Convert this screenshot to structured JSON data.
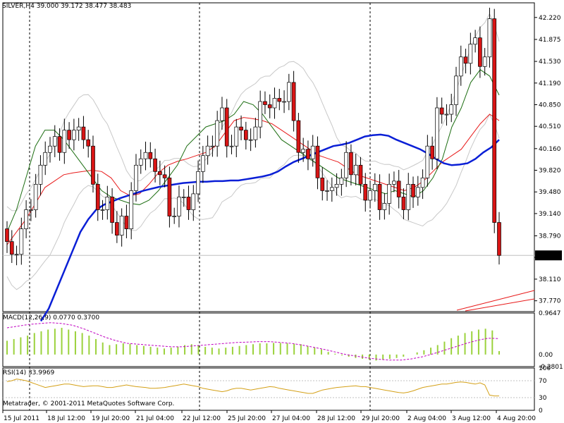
{
  "header": {
    "symbol": "SILVER,H4",
    "ohlc": "39.000 39.172 38.477 38.483"
  },
  "chart_data": [
    {
      "type": "candlestick",
      "title": "SILVER,H4",
      "ylim": [
        37.6,
        42.45
      ],
      "y_ticks": [
        "42.220",
        "41.875",
        "41.530",
        "41.190",
        "40.850",
        "40.510",
        "40.160",
        "39.820",
        "39.480",
        "39.140",
        "38.790",
        "38.450",
        "38.110",
        "37.770"
      ],
      "y_tick_values": [
        42.22,
        41.875,
        41.53,
        41.19,
        40.85,
        40.51,
        40.16,
        39.82,
        39.48,
        39.14,
        38.79,
        38.45,
        38.11,
        37.77
      ],
      "price_tag": "38.483",
      "price_value": 38.483,
      "closes": [
        38.7,
        38.5,
        38.5,
        38.9,
        39.2,
        39.2,
        39.6,
        39.9,
        40.1,
        40.2,
        40.35,
        40.1,
        40.45,
        40.3,
        40.45,
        40.5,
        40.3,
        40.2,
        39.6,
        39.2,
        39.2,
        39.4,
        39.0,
        38.8,
        39.1,
        38.9,
        39.5,
        39.9,
        40.0,
        40.1,
        40.0,
        39.8,
        39.75,
        39.7,
        39.1,
        39.1,
        39.4,
        39.4,
        39.2,
        39.45,
        39.8,
        40.05,
        40.2,
        40.2,
        40.6,
        40.8,
        40.2,
        40.2,
        40.5,
        40.45,
        40.3,
        40.3,
        40.5,
        40.9,
        40.85,
        40.8,
        40.95,
        40.9,
        40.9,
        41.2,
        40.6,
        40.1,
        40.15,
        40.0,
        40.2,
        39.7,
        39.5,
        39.5,
        39.55,
        39.6,
        39.7,
        40.1,
        39.75,
        39.9,
        39.6,
        39.35,
        39.5,
        39.6,
        39.2,
        39.3,
        39.6,
        39.65,
        39.4,
        39.2,
        39.6,
        39.4,
        39.55,
        39.7,
        40.2,
        40.0,
        40.8,
        40.7,
        40.7,
        40.85,
        41.3,
        41.6,
        41.5,
        41.8,
        41.9,
        41.45,
        41.6,
        42.2,
        39.0,
        38.483
      ],
      "ma_blue": [
        37.45,
        37.65,
        37.95,
        38.25,
        38.55,
        38.85,
        39.05,
        39.2,
        39.28,
        39.33,
        39.38,
        39.42,
        39.46,
        39.5,
        39.53,
        39.56,
        39.58,
        39.6,
        39.62,
        39.63,
        39.64,
        39.64,
        39.65,
        39.65,
        39.66,
        39.66,
        39.68,
        39.7,
        39.72,
        39.75,
        39.8,
        39.88,
        39.95,
        40.0,
        40.05,
        40.1,
        40.15,
        40.2,
        40.22,
        40.25,
        40.3,
        40.35,
        40.37,
        40.38,
        40.36,
        40.3,
        40.25,
        40.2,
        40.15,
        40.08,
        40.0,
        39.93,
        39.9,
        39.91,
        39.93,
        40.0,
        40.1,
        40.18,
        40.3
      ],
      "ma_red": [
        38.65,
        38.85,
        39.05,
        39.3,
        39.55,
        39.65,
        39.75,
        39.78,
        39.8,
        39.82,
        39.8,
        39.7,
        39.5,
        39.42,
        39.45,
        39.6,
        39.78,
        39.9,
        39.96,
        40.0,
        40.05,
        40.1,
        40.2,
        40.4,
        40.6,
        40.65,
        40.63,
        40.6,
        40.55,
        40.45,
        40.35,
        40.25,
        40.15,
        40.05,
        40.0,
        39.95,
        39.85,
        39.75,
        39.7,
        39.65,
        39.6,
        39.55,
        39.5,
        39.55,
        39.65,
        39.8,
        39.95,
        40.05,
        40.15,
        40.35,
        40.55,
        40.7,
        40.6
      ],
      "ma_green": [
        38.85,
        39.2,
        39.7,
        40.2,
        40.45,
        40.45,
        40.3,
        40.1,
        39.9,
        39.7,
        39.5,
        39.4,
        39.35,
        39.3,
        39.28,
        39.35,
        39.5,
        39.7,
        39.9,
        40.2,
        40.35,
        40.5,
        40.55,
        40.6,
        40.7,
        40.9,
        40.85,
        40.7,
        40.5,
        40.3,
        40.2,
        40.1,
        40.0,
        39.9,
        39.8,
        39.7,
        39.65,
        39.6,
        39.55,
        39.5,
        39.45,
        39.5,
        39.45,
        39.4,
        39.5,
        39.7,
        40.0,
        40.5,
        40.8,
        41.2,
        41.4,
        41.3,
        41.0
      ],
      "lines": [
        {
          "name": "MA blue",
          "color": "#0a1fd6"
        },
        {
          "name": "MA red",
          "color": "#e81b1b"
        },
        {
          "name": "MA green",
          "color": "#1d6e12"
        },
        {
          "name": "Bands",
          "color": "#c8c8c8"
        }
      ]
    },
    {
      "type": "bar",
      "title": "MACD(12,26,9) 0.0770 0.3700",
      "y_ticks": [
        "0.9647",
        "0.00",
        "-0.2801"
      ],
      "ylim": [
        -0.2801,
        0.9647
      ],
      "values": [
        0.32,
        0.36,
        0.4,
        0.44,
        0.5,
        0.54,
        0.58,
        0.6,
        0.62,
        0.58,
        0.54,
        0.5,
        0.44,
        0.36,
        0.28,
        0.22,
        0.24,
        0.26,
        0.25,
        0.22,
        0.2,
        0.18,
        0.16,
        0.14,
        0.16,
        0.18,
        0.22,
        0.24,
        0.22,
        0.18,
        0.16,
        0.14,
        0.16,
        0.18,
        0.2,
        0.22,
        0.24,
        0.26,
        0.26,
        0.27,
        0.27,
        0.26,
        0.25,
        0.24,
        0.2,
        0.16,
        0.12,
        0.06,
        0.02,
        -0.02,
        -0.05,
        -0.08,
        -0.1,
        -0.12,
        -0.14,
        -0.12,
        -0.1,
        -0.08,
        -0.05,
        0.0,
        0.05,
        0.1,
        0.16,
        0.22,
        0.3,
        0.38,
        0.44,
        0.5,
        0.54,
        0.58,
        0.6,
        0.56,
        0.08
      ],
      "signal": [
        0.62,
        0.66,
        0.7,
        0.72,
        0.74,
        0.72,
        0.68,
        0.6,
        0.5,
        0.4,
        0.32,
        0.26,
        0.24,
        0.22,
        0.2,
        0.18,
        0.18,
        0.2,
        0.22,
        0.24,
        0.26,
        0.28,
        0.29,
        0.3,
        0.3,
        0.28,
        0.26,
        0.22,
        0.17,
        0.12,
        0.06,
        0.0,
        -0.04,
        -0.08,
        -0.11,
        -0.13,
        -0.13,
        -0.1,
        -0.05,
        0.02,
        0.1,
        0.18,
        0.26,
        0.33,
        0.38,
        0.37
      ]
    },
    {
      "type": "line",
      "title": "RSI(14) 33.9969",
      "y_ticks": [
        "100",
        "70",
        "30",
        "0"
      ],
      "ylim": [
        0,
        100
      ],
      "values": [
        68,
        70,
        74,
        72,
        70,
        66,
        62,
        58,
        54,
        56,
        58,
        60,
        62,
        62,
        60,
        58,
        56,
        57,
        58,
        58,
        56,
        54,
        54,
        56,
        58,
        60,
        58,
        56,
        55,
        54,
        52,
        52,
        53,
        54,
        56,
        58,
        60,
        62,
        60,
        58,
        56,
        52,
        50,
        48,
        46,
        44,
        46,
        50,
        52,
        52,
        50,
        48,
        50,
        52,
        54,
        56,
        55,
        52,
        50,
        48,
        46,
        44,
        42,
        40,
        40,
        44,
        48,
        50,
        52,
        54,
        55,
        56,
        57,
        58,
        56,
        56,
        54,
        52,
        50,
        48,
        46,
        44,
        42,
        41,
        43,
        46,
        50,
        54,
        56,
        58,
        60,
        62,
        62,
        64,
        66,
        67,
        66,
        64,
        62,
        65,
        60,
        36,
        34,
        34
      ]
    }
  ],
  "x_labels": [
    "15 Jul 2011",
    "18 Jul 12:00",
    "19 Jul 20:00",
    "21 Jul 04:00",
    "22 Jul 12:00",
    "25 Jul 20:00",
    "27 Jul 04:00",
    "28 Jul 12:00",
    "29 Jul 20:00",
    "2 Aug 04:00",
    "3 Aug 12:00",
    "4 Aug 20:00"
  ],
  "copyright": "Metatrader, © 2001-2011 MetaQuotes Software Corp."
}
